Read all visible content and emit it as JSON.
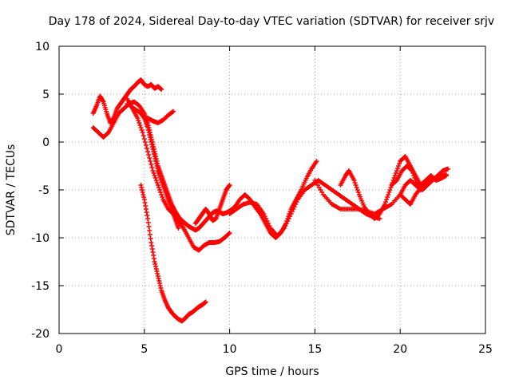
{
  "chart_data": {
    "type": "scatter",
    "title": "Day 178 of 2024, Sidereal Day-to-day VTEC variation (SDTVAR) for receiver srjv",
    "xlabel": "GPS time / hours",
    "ylabel": "SDTVAR / TECUs",
    "xlim": [
      0,
      25
    ],
    "ylim": [
      -20,
      10
    ],
    "xticks": [
      "0",
      "5",
      "10",
      "15",
      "20",
      "25"
    ],
    "yticks": [
      "-20",
      "-15",
      "-10",
      "-5",
      "0",
      "5",
      "10"
    ],
    "grid": true,
    "legend": "none",
    "marker": "plus",
    "series_color": "#ff0000",
    "series": [
      {
        "x": [
          2.0,
          2.2,
          2.4,
          2.6,
          2.8,
          3.0,
          3.2,
          3.4,
          3.6,
          3.8,
          4.0,
          4.2,
          4.4,
          4.6,
          4.8,
          5.0,
          5.2,
          5.4,
          5.6,
          5.8,
          6.0
        ],
        "y": [
          3.0,
          3.8,
          4.8,
          4.2,
          3.0,
          2.0,
          2.5,
          3.5,
          4.0,
          4.5,
          5.0,
          5.5,
          5.8,
          6.2,
          6.5,
          6.0,
          5.8,
          6.0,
          5.6,
          5.8,
          5.5
        ]
      },
      {
        "x": [
          2.0,
          2.3,
          2.6,
          2.9,
          3.2,
          3.5,
          3.8,
          4.1,
          4.4,
          4.7,
          5.0,
          5.2,
          5.4,
          5.6,
          5.8,
          6.0,
          6.2,
          6.4,
          6.6,
          6.8,
          7.0,
          7.2,
          7.4,
          7.6,
          7.8,
          8.0,
          8.2,
          8.4,
          8.6,
          8.8,
          9.0,
          9.2,
          9.4,
          9.6,
          9.8,
          10.0
        ],
        "y": [
          1.5,
          1.0,
          0.5,
          1.0,
          2.0,
          3.0,
          3.5,
          4.0,
          4.2,
          3.8,
          3.0,
          2.0,
          0.5,
          -1.0,
          -2.5,
          -3.5,
          -4.5,
          -5.5,
          -6.5,
          -7.2,
          -7.8,
          -8.2,
          -8.5,
          -8.8,
          -9.0,
          -9.2,
          -9.0,
          -8.6,
          -8.2,
          -7.8,
          -7.4,
          -7.2,
          -7.3,
          -7.5,
          -7.4,
          -7.2
        ]
      },
      {
        "x": [
          4.0,
          4.3,
          4.6,
          4.9,
          5.2,
          5.5,
          5.8,
          6.1,
          6.4,
          6.7,
          7.0,
          7.3,
          7.6,
          7.9,
          8.2,
          8.5,
          8.8,
          9.1,
          9.4,
          9.7,
          10.0
        ],
        "y": [
          4.5,
          3.5,
          2.5,
          1.0,
          -1.0,
          -3.0,
          -4.5,
          -6.0,
          -7.0,
          -7.5,
          -8.2,
          -9.0,
          -10.0,
          -11.0,
          -11.3,
          -10.8,
          -10.5,
          -10.5,
          -10.4,
          -10.0,
          -9.5
        ]
      },
      {
        "x": [
          4.8,
          5.0,
          5.2,
          5.4,
          5.6,
          5.8,
          6.0,
          6.2,
          6.4,
          6.6,
          6.8,
          7.0,
          7.2,
          7.4,
          7.6,
          7.8,
          8.0,
          8.2,
          8.4,
          8.6
        ],
        "y": [
          -4.5,
          -6.0,
          -8.0,
          -10.5,
          -12.5,
          -14.0,
          -15.5,
          -16.5,
          -17.3,
          -17.8,
          -18.2,
          -18.5,
          -18.7,
          -18.4,
          -18.0,
          -17.8,
          -17.5,
          -17.2,
          -17.0,
          -16.7
        ]
      },
      {
        "x": [
          4.0,
          4.4,
          4.8,
          5.0,
          5.2,
          5.4,
          5.6,
          5.8,
          6.0,
          6.2,
          6.4,
          6.6,
          6.8,
          7.0
        ],
        "y": [
          4.0,
          3.5,
          3.0,
          2.5,
          1.5,
          0.0,
          -1.5,
          -3.0,
          -4.0,
          -5.0,
          -6.0,
          -7.0,
          -8.0,
          -9.0
        ]
      },
      {
        "x": [
          5.2,
          5.5,
          5.8,
          6.1,
          6.4,
          6.7
        ],
        "y": [
          2.5,
          2.2,
          2.0,
          2.3,
          2.8,
          3.2
        ]
      },
      {
        "x": [
          8.0,
          8.2,
          8.4,
          8.6,
          8.8,
          9.0,
          9.2,
          9.4,
          9.6,
          9.8,
          10.0
        ],
        "y": [
          -8.5,
          -8.0,
          -7.5,
          -7.0,
          -7.5,
          -8.2,
          -8.0,
          -7.0,
          -6.0,
          -5.0,
          -4.5
        ]
      },
      {
        "x": [
          10.0,
          10.3,
          10.6,
          10.9,
          11.2,
          11.5,
          11.8,
          12.1,
          12.4,
          12.7,
          13.0,
          13.3,
          13.6,
          13.9,
          14.2,
          14.5,
          14.8,
          15.1
        ],
        "y": [
          -7.2,
          -6.8,
          -6.0,
          -5.5,
          -6.0,
          -6.8,
          -7.5,
          -8.5,
          -9.5,
          -10.0,
          -9.5,
          -8.5,
          -7.0,
          -6.0,
          -5.0,
          -3.8,
          -2.8,
          -2.0
        ]
      },
      {
        "x": [
          10.0,
          10.4,
          10.8,
          11.2,
          11.6,
          12.0,
          12.4,
          12.8,
          13.2,
          13.6,
          14.0,
          14.4,
          14.8,
          15.2,
          15.6,
          16.0,
          16.4,
          16.8,
          17.2,
          17.6,
          18.0,
          18.4,
          18.8
        ],
        "y": [
          -7.5,
          -7.0,
          -6.5,
          -6.3,
          -6.5,
          -7.5,
          -9.0,
          -9.8,
          -9.0,
          -7.5,
          -6.0,
          -5.0,
          -4.5,
          -4.0,
          -4.5,
          -5.0,
          -5.5,
          -6.0,
          -6.5,
          -7.0,
          -7.5,
          -7.8,
          -8.0
        ]
      },
      {
        "x": [
          15.0,
          15.5,
          16.0,
          16.5,
          17.0,
          17.5,
          18.0,
          18.5,
          19.0,
          19.5,
          20.0,
          20.3,
          20.6,
          20.9,
          21.2
        ],
        "y": [
          -4.0,
          -5.5,
          -6.5,
          -7.0,
          -7.0,
          -7.0,
          -7.2,
          -7.5,
          -7.0,
          -6.5,
          -5.5,
          -4.5,
          -4.0,
          -4.5,
          -5.0
        ]
      },
      {
        "x": [
          16.5,
          16.8,
          17.0,
          17.3,
          17.6,
          17.9,
          18.2,
          18.5,
          18.8,
          19.1,
          19.4,
          19.7,
          20.0,
          20.3,
          20.6,
          20.9,
          21.2,
          21.5,
          21.8,
          22.1,
          22.4,
          22.7
        ],
        "y": [
          -4.5,
          -3.5,
          -3.0,
          -4.0,
          -5.5,
          -6.8,
          -7.5,
          -8.0,
          -7.5,
          -6.5,
          -5.0,
          -3.5,
          -2.0,
          -1.5,
          -2.5,
          -3.5,
          -4.5,
          -4.0,
          -3.5,
          -4.0,
          -3.8,
          -3.5
        ]
      },
      {
        "x": [
          19.5,
          19.8,
          20.1,
          20.4,
          20.7,
          21.0,
          21.3,
          21.6,
          21.9,
          22.2,
          22.5,
          22.8
        ],
        "y": [
          -4.5,
          -4.0,
          -3.0,
          -2.5,
          -3.0,
          -4.5,
          -5.0,
          -4.5,
          -4.0,
          -3.5,
          -3.0,
          -2.8
        ]
      },
      {
        "x": [
          20.0,
          20.3,
          20.6,
          20.9,
          21.2,
          21.5,
          21.8,
          22.1,
          22.4,
          22.7
        ],
        "y": [
          -5.5,
          -6.0,
          -6.5,
          -5.5,
          -4.8,
          -4.5,
          -4.0,
          -3.8,
          -3.6,
          -3.4
        ]
      }
    ]
  }
}
